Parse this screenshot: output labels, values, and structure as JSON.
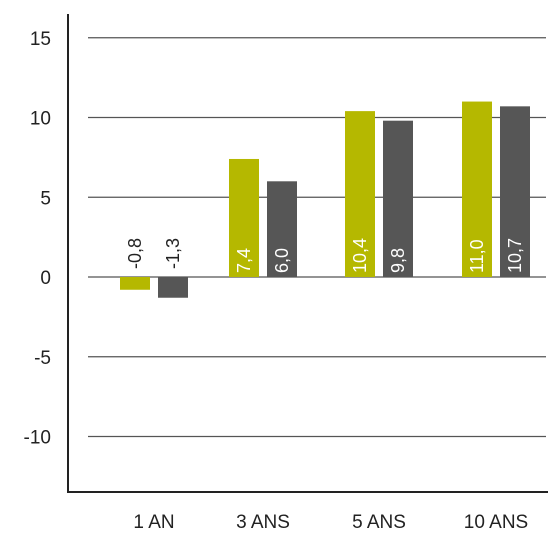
{
  "chart_data": {
    "type": "bar",
    "categories": [
      "1 AN",
      "3 ANS",
      "5 ANS",
      "10 ANS"
    ],
    "series": [
      {
        "values": [
          -0.8,
          7.4,
          10.4,
          11.0
        ],
        "labels": [
          "-0,8",
          "7,4",
          "10,4",
          "11,0"
        ],
        "color": "#b5b800"
      },
      {
        "values": [
          -1.3,
          6.0,
          9.8,
          10.7
        ],
        "labels": [
          "-1,3",
          "6,0",
          "9,8",
          "10,7"
        ],
        "color": "#565656"
      }
    ],
    "yticks": [
      "15",
      "10",
      "5",
      "0",
      "-5",
      "-10"
    ],
    "ylim": [
      -13.5,
      16.5
    ],
    "grid": true,
    "legend": "none",
    "colors": {
      "axis": "#222222",
      "grid": "#555555",
      "label_inside": "#ffffff",
      "label_outside": "#222222"
    }
  }
}
